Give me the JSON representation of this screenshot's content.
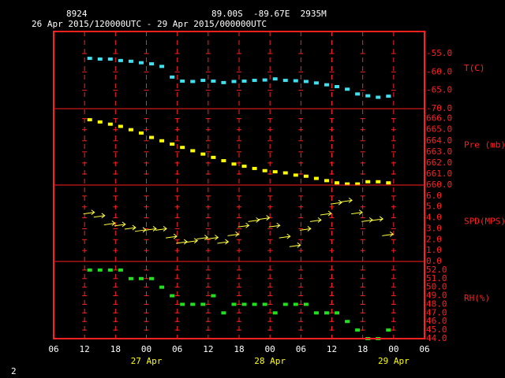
{
  "header": {
    "station": "8924",
    "location": "89.00S  -89.67E  2935M",
    "period": "26 Apr 2015/120000UTC - 29 Apr 2015/000000UTC",
    "page": "2"
  },
  "chart_data": [
    {
      "type": "scatter",
      "marker": "square",
      "label": "T(C)",
      "color": "#40e0f0",
      "x": [
        13,
        15,
        17,
        19,
        21,
        23,
        25,
        27,
        29,
        31,
        33,
        35,
        37,
        39,
        41,
        43,
        45,
        47,
        49,
        51,
        53,
        55,
        57,
        59,
        61,
        63,
        65,
        67,
        69,
        71
      ],
      "values": [
        -56.3,
        -56.5,
        -56.5,
        -56.9,
        -57.1,
        -57.5,
        -57.8,
        -58.5,
        -61.4,
        -62.5,
        -62.6,
        -62.3,
        -62.5,
        -62.9,
        -62.6,
        -62.5,
        -62.3,
        -62.2,
        -61.9,
        -62.3,
        -62.4,
        -62.6,
        -63.0,
        -63.5,
        -64.0,
        -64.7,
        -66.0,
        -66.5,
        -66.9,
        -66.6
      ],
      "xlim": [
        6,
        78
      ],
      "ylim": [
        -70,
        -49
      ],
      "yticks": [
        {
          "value": -55,
          "label": "-55.0"
        },
        {
          "value": -60,
          "label": "-60.0"
        },
        {
          "value": -65,
          "label": "-65.0"
        },
        {
          "value": -70,
          "label": "-70.0"
        }
      ]
    },
    {
      "type": "scatter",
      "marker": "square",
      "label": "Pre (mb)",
      "color": "#ffff00",
      "x": [
        13,
        15,
        17,
        19,
        21,
        23,
        25,
        27,
        29,
        31,
        33,
        35,
        37,
        39,
        41,
        43,
        45,
        47,
        49,
        51,
        53,
        55,
        57,
        59,
        61,
        63,
        65,
        67,
        69,
        71
      ],
      "values": [
        665.9,
        665.7,
        665.5,
        665.3,
        665.0,
        664.7,
        664.3,
        664.0,
        663.7,
        663.4,
        663.1,
        662.8,
        662.5,
        662.2,
        661.9,
        661.7,
        661.5,
        661.3,
        661.2,
        661.1,
        660.9,
        660.8,
        660.6,
        660.4,
        660.2,
        660.1,
        660.1,
        660.3,
        660.3,
        660.2
      ],
      "xlim": [
        6,
        78
      ],
      "ylim": [
        660,
        666.9
      ],
      "yticks": [
        {
          "value": 666,
          "label": "666.0"
        },
        {
          "value": 665,
          "label": "665.0"
        },
        {
          "value": 664,
          "label": "664.0"
        },
        {
          "value": 663,
          "label": "663.0"
        },
        {
          "value": 662,
          "label": "662.0"
        },
        {
          "value": 661,
          "label": "661.0"
        },
        {
          "value": 660,
          "label": "660.0"
        }
      ]
    },
    {
      "type": "scatter",
      "marker": "arrow",
      "label": "SPD(MPS)",
      "color": "#ffff40",
      "x": [
        13,
        15,
        17,
        19,
        21,
        23,
        25,
        27,
        29,
        31,
        33,
        35,
        37,
        39,
        41,
        43,
        45,
        47,
        49,
        51,
        53,
        55,
        57,
        59,
        61,
        63,
        65,
        67,
        69,
        71
      ],
      "values": [
        4.5,
        4.2,
        3.5,
        3.4,
        3.1,
        2.9,
        3.0,
        3.0,
        2.3,
        1.8,
        1.9,
        2.2,
        2.2,
        1.8,
        2.5,
        3.3,
        3.8,
        4.0,
        3.3,
        2.3,
        1.5,
        3.0,
        3.8,
        4.4,
        5.4,
        5.6,
        4.5,
        3.8,
        3.9,
        2.5
      ],
      "xlim": [
        6,
        78
      ],
      "ylim": [
        0,
        7
      ],
      "yticks": [
        {
          "value": 6,
          "label": "6.0"
        },
        {
          "value": 5,
          "label": "5.0"
        },
        {
          "value": 4,
          "label": "4.0"
        },
        {
          "value": 3,
          "label": "3.0"
        },
        {
          "value": 2,
          "label": "2.0"
        },
        {
          "value": 1,
          "label": "1.0"
        },
        {
          "value": 0,
          "label": "0.0"
        }
      ]
    },
    {
      "type": "scatter",
      "marker": "square",
      "label": "RH(%)",
      "color": "#20e020",
      "x": [
        13,
        15,
        17,
        19,
        21,
        23,
        25,
        27,
        29,
        31,
        33,
        35,
        37,
        39,
        41,
        43,
        45,
        47,
        49,
        51,
        53,
        55,
        57,
        59,
        61,
        63,
        65,
        67,
        69,
        71
      ],
      "values": [
        52,
        52,
        52,
        52,
        51,
        51,
        51,
        50,
        49,
        48,
        48,
        48,
        49,
        47,
        48,
        48,
        48,
        48,
        47,
        48,
        48,
        48,
        47,
        47,
        47,
        46,
        45,
        44,
        44,
        45
      ],
      "xlim": [
        6,
        78
      ],
      "ylim": [
        44,
        53
      ],
      "yticks": [
        {
          "value": 52,
          "label": "52.0"
        },
        {
          "value": 51,
          "label": "51.0"
        },
        {
          "value": 50,
          "label": "50.0"
        },
        {
          "value": 49,
          "label": "49.0"
        },
        {
          "value": 48,
          "label": "48.0"
        },
        {
          "value": 47,
          "label": "47.0"
        },
        {
          "value": 46,
          "label": "46.0"
        },
        {
          "value": 45,
          "label": "45.0"
        },
        {
          "value": 44,
          "label": "44.0"
        }
      ],
      "xticks": [
        {
          "value": 6,
          "label": "06"
        },
        {
          "value": 12,
          "label": "12"
        },
        {
          "value": 18,
          "label": "18"
        },
        {
          "value": 24,
          "label": "00"
        },
        {
          "value": 30,
          "label": "06"
        },
        {
          "value": 36,
          "label": "12"
        },
        {
          "value": 42,
          "label": "18"
        },
        {
          "value": 48,
          "label": "00"
        },
        {
          "value": 54,
          "label": "06"
        },
        {
          "value": 60,
          "label": "12"
        },
        {
          "value": 66,
          "label": "18"
        },
        {
          "value": 72,
          "label": "00"
        },
        {
          "value": 78,
          "label": "06"
        }
      ],
      "date_labels": [
        {
          "value": 24,
          "label": "27 Apr"
        },
        {
          "value": 48,
          "label": "28 Apr"
        },
        {
          "value": 72,
          "label": "29 Apr"
        }
      ]
    }
  ]
}
